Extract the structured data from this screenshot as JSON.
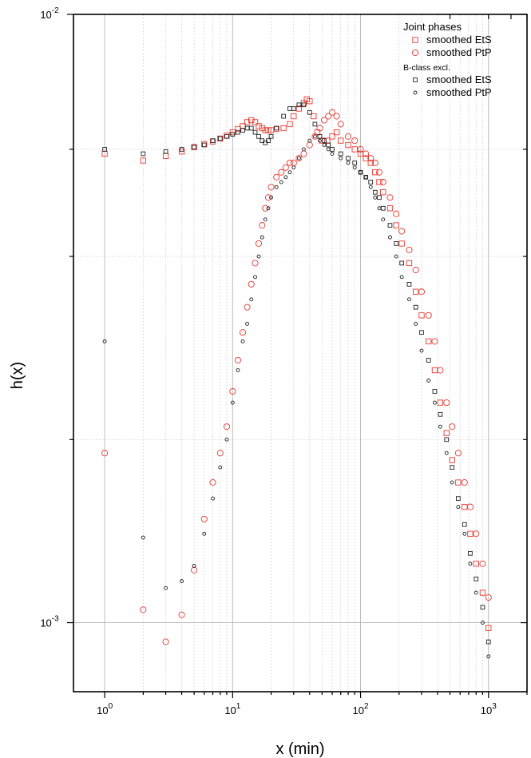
{
  "chart_data": {
    "type": "scatter",
    "xlabel": "x (min)",
    "ylabel": "h(x)",
    "xscale": "log",
    "yscale": "log",
    "xlim": [
      0.57,
      2000
    ],
    "ylim": [
      0.00077,
      0.01
    ],
    "x_ticks": [
      {
        "base": "10",
        "exp": "0"
      },
      {
        "base": "10",
        "exp": "1"
      },
      {
        "base": "10",
        "exp": "2"
      },
      {
        "base": "10",
        "exp": "3"
      }
    ],
    "y_ticks": [
      {
        "base": "10",
        "exp": "-3"
      },
      {
        "base": "10",
        "exp": "-2"
      }
    ],
    "grid": true,
    "legend": {
      "position": "top-right",
      "groups": [
        {
          "title": "Joint phases",
          "entries": [
            "smoothed EtS",
            "smoothed PtP"
          ]
        },
        {
          "title": "B-class excl.",
          "entries": [
            "smoothed EtS",
            "smoothed PtP"
          ]
        }
      ]
    },
    "colors": {
      "joint": "#e8382e",
      "bclass": "#222222"
    },
    "series": [
      {
        "group": "Joint phases",
        "name": "smoothed EtS",
        "marker": "square",
        "color": "#e8382e",
        "x": [
          1,
          2,
          3,
          4,
          5,
          6,
          7,
          8,
          9,
          10,
          11,
          12,
          13,
          14,
          15,
          16,
          17,
          18,
          19,
          20,
          22,
          25,
          28,
          30,
          33,
          36,
          38,
          40,
          43,
          46,
          50,
          55,
          60,
          65,
          70,
          80,
          90,
          100,
          110,
          120,
          130,
          140,
          150,
          170,
          190,
          210,
          240,
          270,
          300,
          340,
          380,
          420,
          470,
          520,
          580,
          650,
          720,
          800,
          900,
          1000
        ],
        "y": [
          0.0059,
          0.00575,
          0.00585,
          0.00595,
          0.00605,
          0.00612,
          0.00618,
          0.00625,
          0.00632,
          0.0064,
          0.00648,
          0.00655,
          0.00665,
          0.0067,
          0.00665,
          0.00655,
          0.0065,
          0.00645,
          0.00645,
          0.00645,
          0.00648,
          0.0065,
          0.0066,
          0.0068,
          0.007,
          0.00715,
          0.00725,
          0.0072,
          0.0068,
          0.0064,
          0.0062,
          0.0062,
          0.0063,
          0.0064,
          0.0062,
          0.0061,
          0.006,
          0.0059,
          0.0058,
          0.0057,
          0.0055,
          0.0053,
          0.0051,
          0.0048,
          0.0045,
          0.0042,
          0.0039,
          0.0035,
          0.0032,
          0.0029,
          0.0026,
          0.0023,
          0.00205,
          0.00185,
          0.0017,
          0.00155,
          0.0014,
          0.00125,
          0.00112,
          0.00098
        ]
      },
      {
        "group": "Joint phases",
        "name": "smoothed PtP",
        "marker": "circle",
        "color": "#e8382e",
        "x": [
          1,
          2,
          3,
          4,
          5,
          6,
          7,
          8,
          9,
          10,
          11,
          12,
          13,
          14,
          15,
          16,
          17,
          18,
          19,
          20,
          22,
          24,
          26,
          28,
          30,
          33,
          36,
          40,
          44,
          48,
          52,
          56,
          60,
          65,
          70,
          80,
          90,
          100,
          110,
          120,
          130,
          140,
          150,
          170,
          190,
          210,
          240,
          270,
          300,
          340,
          380,
          420,
          470,
          520,
          580,
          650,
          720,
          800,
          900,
          1000
        ],
        "y": [
          0.0019,
          0.00105,
          0.00093,
          0.00103,
          0.00122,
          0.00148,
          0.0017,
          0.0019,
          0.0021,
          0.0024,
          0.0027,
          0.003,
          0.0033,
          0.0036,
          0.0039,
          0.0042,
          0.0045,
          0.0048,
          0.005,
          0.0052,
          0.0054,
          0.0055,
          0.0056,
          0.0057,
          0.0057,
          0.0058,
          0.0059,
          0.0061,
          0.0063,
          0.0065,
          0.0067,
          0.0068,
          0.0069,
          0.0068,
          0.0066,
          0.0063,
          0.0062,
          0.006,
          0.0059,
          0.0058,
          0.0057,
          0.0055,
          0.0053,
          0.005,
          0.0047,
          0.0044,
          0.0041,
          0.0038,
          0.0035,
          0.0032,
          0.0029,
          0.0026,
          0.0023,
          0.0021,
          0.0019,
          0.0017,
          0.00155,
          0.0014,
          0.00125,
          0.0011
        ]
      },
      {
        "group": "B-class excl.",
        "name": "smoothed EtS",
        "marker": "square",
        "color": "#222222",
        "x": [
          1,
          2,
          3,
          4,
          5,
          6,
          7,
          8,
          9,
          10,
          11,
          12,
          13,
          14,
          15,
          16,
          17,
          18,
          19,
          20,
          22,
          25,
          28,
          30,
          33,
          36,
          40,
          44,
          48,
          52,
          56,
          60,
          70,
          80,
          90,
          100,
          110,
          120,
          130,
          140,
          150,
          170,
          190,
          210,
          240,
          270,
          300,
          340,
          380,
          420,
          470,
          520,
          580,
          650,
          720,
          800,
          900,
          1000
        ],
        "y": [
          0.006,
          0.0059,
          0.00595,
          0.006,
          0.00605,
          0.0061,
          0.0062,
          0.00625,
          0.0063,
          0.00635,
          0.0064,
          0.00645,
          0.0065,
          0.0065,
          0.0064,
          0.0063,
          0.0062,
          0.00615,
          0.0062,
          0.0063,
          0.0065,
          0.0068,
          0.007,
          0.007,
          0.0071,
          0.0071,
          0.0069,
          0.0066,
          0.0063,
          0.0062,
          0.0061,
          0.006,
          0.0059,
          0.0058,
          0.0057,
          0.0055,
          0.0054,
          0.0053,
          0.0051,
          0.005,
          0.0048,
          0.0045,
          0.0042,
          0.0039,
          0.0036,
          0.0033,
          0.003,
          0.0027,
          0.0024,
          0.0022,
          0.002,
          0.0018,
          0.0016,
          0.00145,
          0.0013,
          0.00118,
          0.00106,
          0.00093
        ]
      },
      {
        "group": "B-class excl.",
        "name": "smoothed PtP",
        "marker": "circle",
        "color": "#222222",
        "x": [
          1,
          2,
          3,
          4,
          5,
          6,
          7,
          8,
          9,
          10,
          11,
          12,
          13,
          14,
          15,
          16,
          17,
          18,
          19,
          20,
          22,
          24,
          26,
          28,
          30,
          33,
          36,
          40,
          44,
          48,
          52,
          56,
          60,
          70,
          80,
          90,
          100,
          110,
          120,
          130,
          140,
          150,
          170,
          190,
          210,
          240,
          270,
          300,
          340,
          380,
          420,
          470,
          520,
          580,
          650,
          720,
          800,
          900,
          1000
        ],
        "y": [
          0.0029,
          0.00138,
          0.00114,
          0.00117,
          0.00124,
          0.0014,
          0.0016,
          0.0018,
          0.002,
          0.0023,
          0.0026,
          0.0029,
          0.0031,
          0.0034,
          0.0037,
          0.004,
          0.0043,
          0.0046,
          0.0048,
          0.005,
          0.0052,
          0.0053,
          0.0054,
          0.0055,
          0.0056,
          0.0058,
          0.006,
          0.0062,
          0.0063,
          0.0062,
          0.0061,
          0.006,
          0.0059,
          0.0058,
          0.0057,
          0.0056,
          0.0055,
          0.0054,
          0.0052,
          0.005,
          0.0048,
          0.0046,
          0.0043,
          0.004,
          0.0037,
          0.0034,
          0.0031,
          0.0028,
          0.0025,
          0.0023,
          0.0021,
          0.0019,
          0.0017,
          0.00155,
          0.0014,
          0.00125,
          0.00112,
          0.001,
          0.00088
        ]
      }
    ]
  }
}
